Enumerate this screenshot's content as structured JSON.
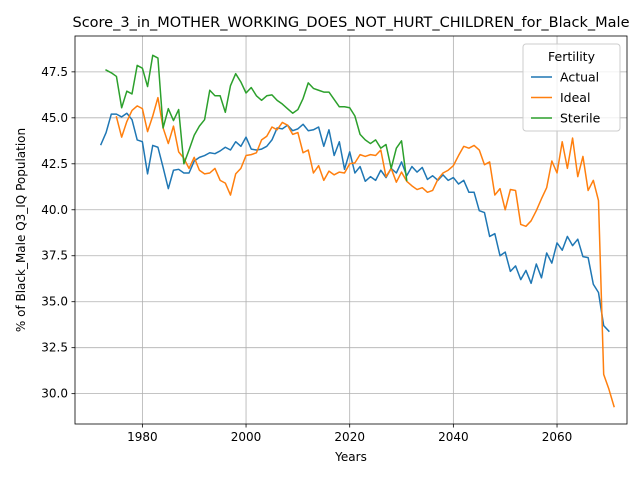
{
  "chart_data": {
    "type": "line",
    "title": "Score_3_in_MOTHER_WORKING_DOES_NOT_HURT_CHILDREN_for_Black_Male",
    "xlabel": "Years",
    "ylabel": "% of Black_Male Q3_IQ Population",
    "xlim": [
      1967,
      2073.5
    ],
    "ylim": [
      28.35,
      49.45
    ],
    "xticks": [
      1980,
      2000,
      2020,
      2040,
      2060
    ],
    "xtick_labels": [
      "1980",
      "2000",
      "2020",
      "2040",
      "2060"
    ],
    "yticks": [
      30.0,
      32.5,
      35.0,
      37.5,
      40.0,
      42.5,
      45.0,
      47.5
    ],
    "ytick_labels": [
      "30.0",
      "32.5",
      "35.0",
      "37.5",
      "40.0",
      "42.5",
      "45.0",
      "47.5"
    ],
    "grid": true,
    "legend": {
      "title": "Fertility",
      "position": "top-right"
    },
    "series": [
      {
        "name": "Actual",
        "color": "#1f77b4",
        "x_start": 1972,
        "values": [
          43.55,
          44.2,
          45.2,
          45.2,
          45.05,
          45.25,
          44.9,
          43.8,
          43.7,
          41.95,
          43.5,
          43.4,
          42.3,
          41.15,
          42.15,
          42.2,
          42.0,
          42.0,
          42.65,
          42.85,
          42.95,
          43.1,
          43.05,
          43.2,
          43.4,
          43.25,
          43.7,
          43.45,
          43.95,
          43.3,
          43.25,
          43.3,
          43.45,
          43.8,
          44.45,
          44.4,
          44.6,
          44.3,
          44.4,
          44.65,
          44.3,
          44.35,
          44.5,
          43.45,
          44.35,
          42.95,
          43.7,
          42.2,
          43.15,
          42.0,
          42.35,
          41.55,
          41.8,
          41.6,
          42.15,
          41.75,
          42.25,
          42.0,
          42.6,
          41.85,
          42.35,
          42.05,
          42.3,
          41.65,
          41.85,
          41.6,
          41.9,
          41.6,
          41.75,
          41.4,
          41.6,
          40.95,
          40.95,
          39.95,
          39.85,
          38.55,
          38.7,
          37.5,
          37.7,
          36.65,
          36.95,
          36.2,
          36.7,
          36.0,
          37.05,
          36.3,
          37.65,
          37.1,
          38.2,
          37.8,
          38.55,
          38.05,
          38.4,
          37.45,
          37.4,
          35.95,
          35.5,
          33.7,
          33.4
        ]
      },
      {
        "name": "Ideal",
        "color": "#ff7f0e",
        "x_start": 1975,
        "values": [
          45.05,
          43.95,
          44.8,
          45.4,
          45.65,
          45.5,
          44.25,
          45.1,
          46.1,
          44.45,
          43.6,
          44.55,
          43.15,
          42.8,
          42.25,
          42.85,
          42.15,
          41.95,
          42.0,
          42.25,
          41.6,
          41.45,
          40.8,
          41.95,
          42.25,
          42.95,
          43.0,
          43.1,
          43.8,
          44.0,
          44.5,
          44.35,
          44.75,
          44.6,
          44.1,
          44.2,
          43.1,
          43.25,
          42.0,
          42.4,
          41.6,
          42.1,
          41.9,
          42.05,
          42.0,
          42.5,
          42.55,
          43.0,
          42.9,
          43.0,
          42.95,
          43.25,
          41.8,
          42.25,
          41.5,
          42.05,
          41.55,
          41.3,
          41.1,
          41.2,
          40.95,
          41.05,
          41.65,
          42.0,
          42.15,
          42.4,
          42.95,
          43.45,
          43.35,
          43.5,
          43.25,
          42.45,
          42.6,
          40.8,
          41.15,
          40.0,
          41.1,
          41.05,
          39.2,
          39.1,
          39.4,
          39.95,
          40.6,
          41.2,
          42.65,
          42.0,
          43.7,
          42.25,
          43.9,
          41.8,
          42.9,
          41.05,
          41.6,
          40.5,
          31.05,
          30.25,
          29.3
        ]
      },
      {
        "name": "Sterile",
        "color": "#2ca02c",
        "x_start": 1973,
        "values": [
          47.6,
          47.45,
          47.25,
          45.55,
          46.45,
          46.3,
          47.85,
          47.7,
          46.7,
          48.4,
          48.25,
          44.45,
          45.5,
          44.85,
          45.45,
          42.5,
          43.25,
          44.05,
          44.55,
          44.9,
          46.5,
          46.2,
          46.2,
          45.3,
          46.75,
          47.4,
          46.95,
          46.35,
          46.65,
          46.2,
          45.95,
          46.2,
          46.25,
          45.95,
          45.75,
          45.5,
          45.25,
          45.45,
          46.05,
          46.9,
          46.6,
          46.5,
          46.4,
          46.4,
          46.0,
          45.6,
          45.6,
          45.55,
          45.1,
          44.1,
          43.8,
          43.6,
          43.8,
          43.35,
          43.55,
          42.25,
          43.35,
          43.75,
          41.6
        ]
      }
    ]
  }
}
